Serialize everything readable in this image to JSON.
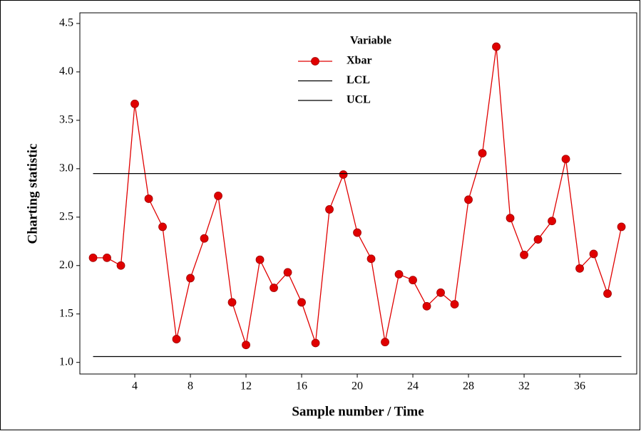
{
  "chart_data": {
    "type": "line",
    "xlabel": "Sample number / Time",
    "ylabel": "Charting statistic",
    "legend_title": "Variable",
    "x": [
      1,
      2,
      3,
      4,
      5,
      6,
      7,
      8,
      9,
      10,
      11,
      12,
      13,
      14,
      15,
      16,
      17,
      18,
      19,
      20,
      21,
      22,
      23,
      24,
      25,
      26,
      27,
      28,
      29,
      30,
      31,
      32,
      33,
      34,
      35,
      36,
      37,
      38,
      39
    ],
    "series": [
      {
        "name": "Xbar",
        "color": "#e00000",
        "marker": true,
        "values": [
          2.08,
          2.08,
          2.0,
          3.67,
          2.69,
          2.4,
          1.24,
          1.87,
          2.28,
          2.72,
          1.62,
          1.18,
          2.06,
          1.77,
          1.93,
          1.62,
          1.2,
          2.58,
          2.94,
          2.34,
          2.07,
          1.21,
          1.91,
          1.85,
          1.58,
          1.72,
          1.6,
          2.68,
          3.16,
          4.26,
          2.49,
          2.11,
          2.27,
          2.46,
          3.1,
          1.97,
          2.12,
          1.71,
          2.4
        ]
      },
      {
        "name": "LCL",
        "color": "#000000",
        "marker": false,
        "values": [
          1.06,
          1.06,
          1.06,
          1.06,
          1.06,
          1.06,
          1.06,
          1.06,
          1.06,
          1.06,
          1.06,
          1.06,
          1.06,
          1.06,
          1.06,
          1.06,
          1.06,
          1.06,
          1.06,
          1.06,
          1.06,
          1.06,
          1.06,
          1.06,
          1.06,
          1.06,
          1.06,
          1.06,
          1.06,
          1.06,
          1.06,
          1.06,
          1.06,
          1.06,
          1.06,
          1.06,
          1.06,
          1.06,
          1.06
        ]
      },
      {
        "name": "UCL",
        "color": "#000000",
        "marker": false,
        "values": [
          2.95,
          2.95,
          2.95,
          2.95,
          2.95,
          2.95,
          2.95,
          2.95,
          2.95,
          2.95,
          2.95,
          2.95,
          2.95,
          2.95,
          2.95,
          2.95,
          2.95,
          2.95,
          2.95,
          2.95,
          2.95,
          2.95,
          2.95,
          2.95,
          2.95,
          2.95,
          2.95,
          2.95,
          2.95,
          2.95,
          2.95,
          2.95,
          2.95,
          2.95,
          2.95,
          2.95,
          2.95,
          2.95,
          2.95
        ]
      }
    ],
    "xlim": [
      0.05,
      40.1
    ],
    "xticks": [
      4,
      8,
      12,
      16,
      20,
      24,
      28,
      32,
      36
    ],
    "ylim": [
      0.88,
      4.61
    ],
    "yticks": [
      {
        "value": 1,
        "label": "1.0"
      },
      1.5,
      {
        "value": 2,
        "label": "2.0"
      },
      2.5,
      {
        "value": 3,
        "label": "3.0"
      },
      3.5,
      {
        "value": 4,
        "label": "4.0"
      },
      4.5
    ],
    "grid": false
  }
}
